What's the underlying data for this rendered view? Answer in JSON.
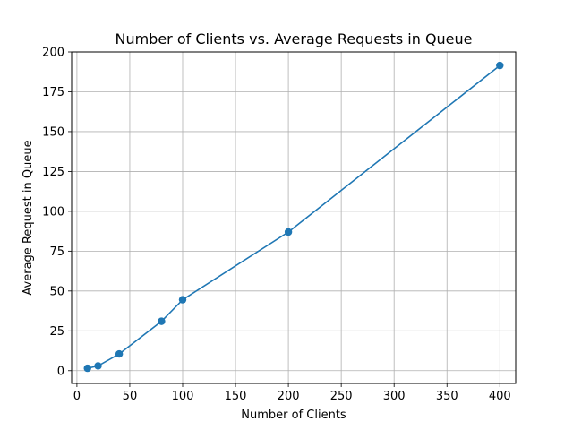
{
  "chart_data": {
    "type": "line",
    "title": "Number of Clients vs. Average Requests in Queue",
    "xlabel": "Number of Clients",
    "ylabel": "Average Request in Queue",
    "xlim": [
      -5,
      415
    ],
    "ylim": [
      -8,
      200
    ],
    "xticks": [
      0,
      50,
      100,
      150,
      200,
      250,
      300,
      350,
      400
    ],
    "yticks": [
      0,
      25,
      50,
      75,
      100,
      125,
      150,
      175,
      200
    ],
    "grid": true,
    "series": [
      {
        "x": [
          10,
          20,
          40,
          80,
          100,
          200,
          400
        ],
        "y": [
          1.5,
          3,
          10.5,
          31,
          44.5,
          87,
          191.5
        ],
        "color": "#1f77b4",
        "marker": "circle"
      }
    ]
  }
}
